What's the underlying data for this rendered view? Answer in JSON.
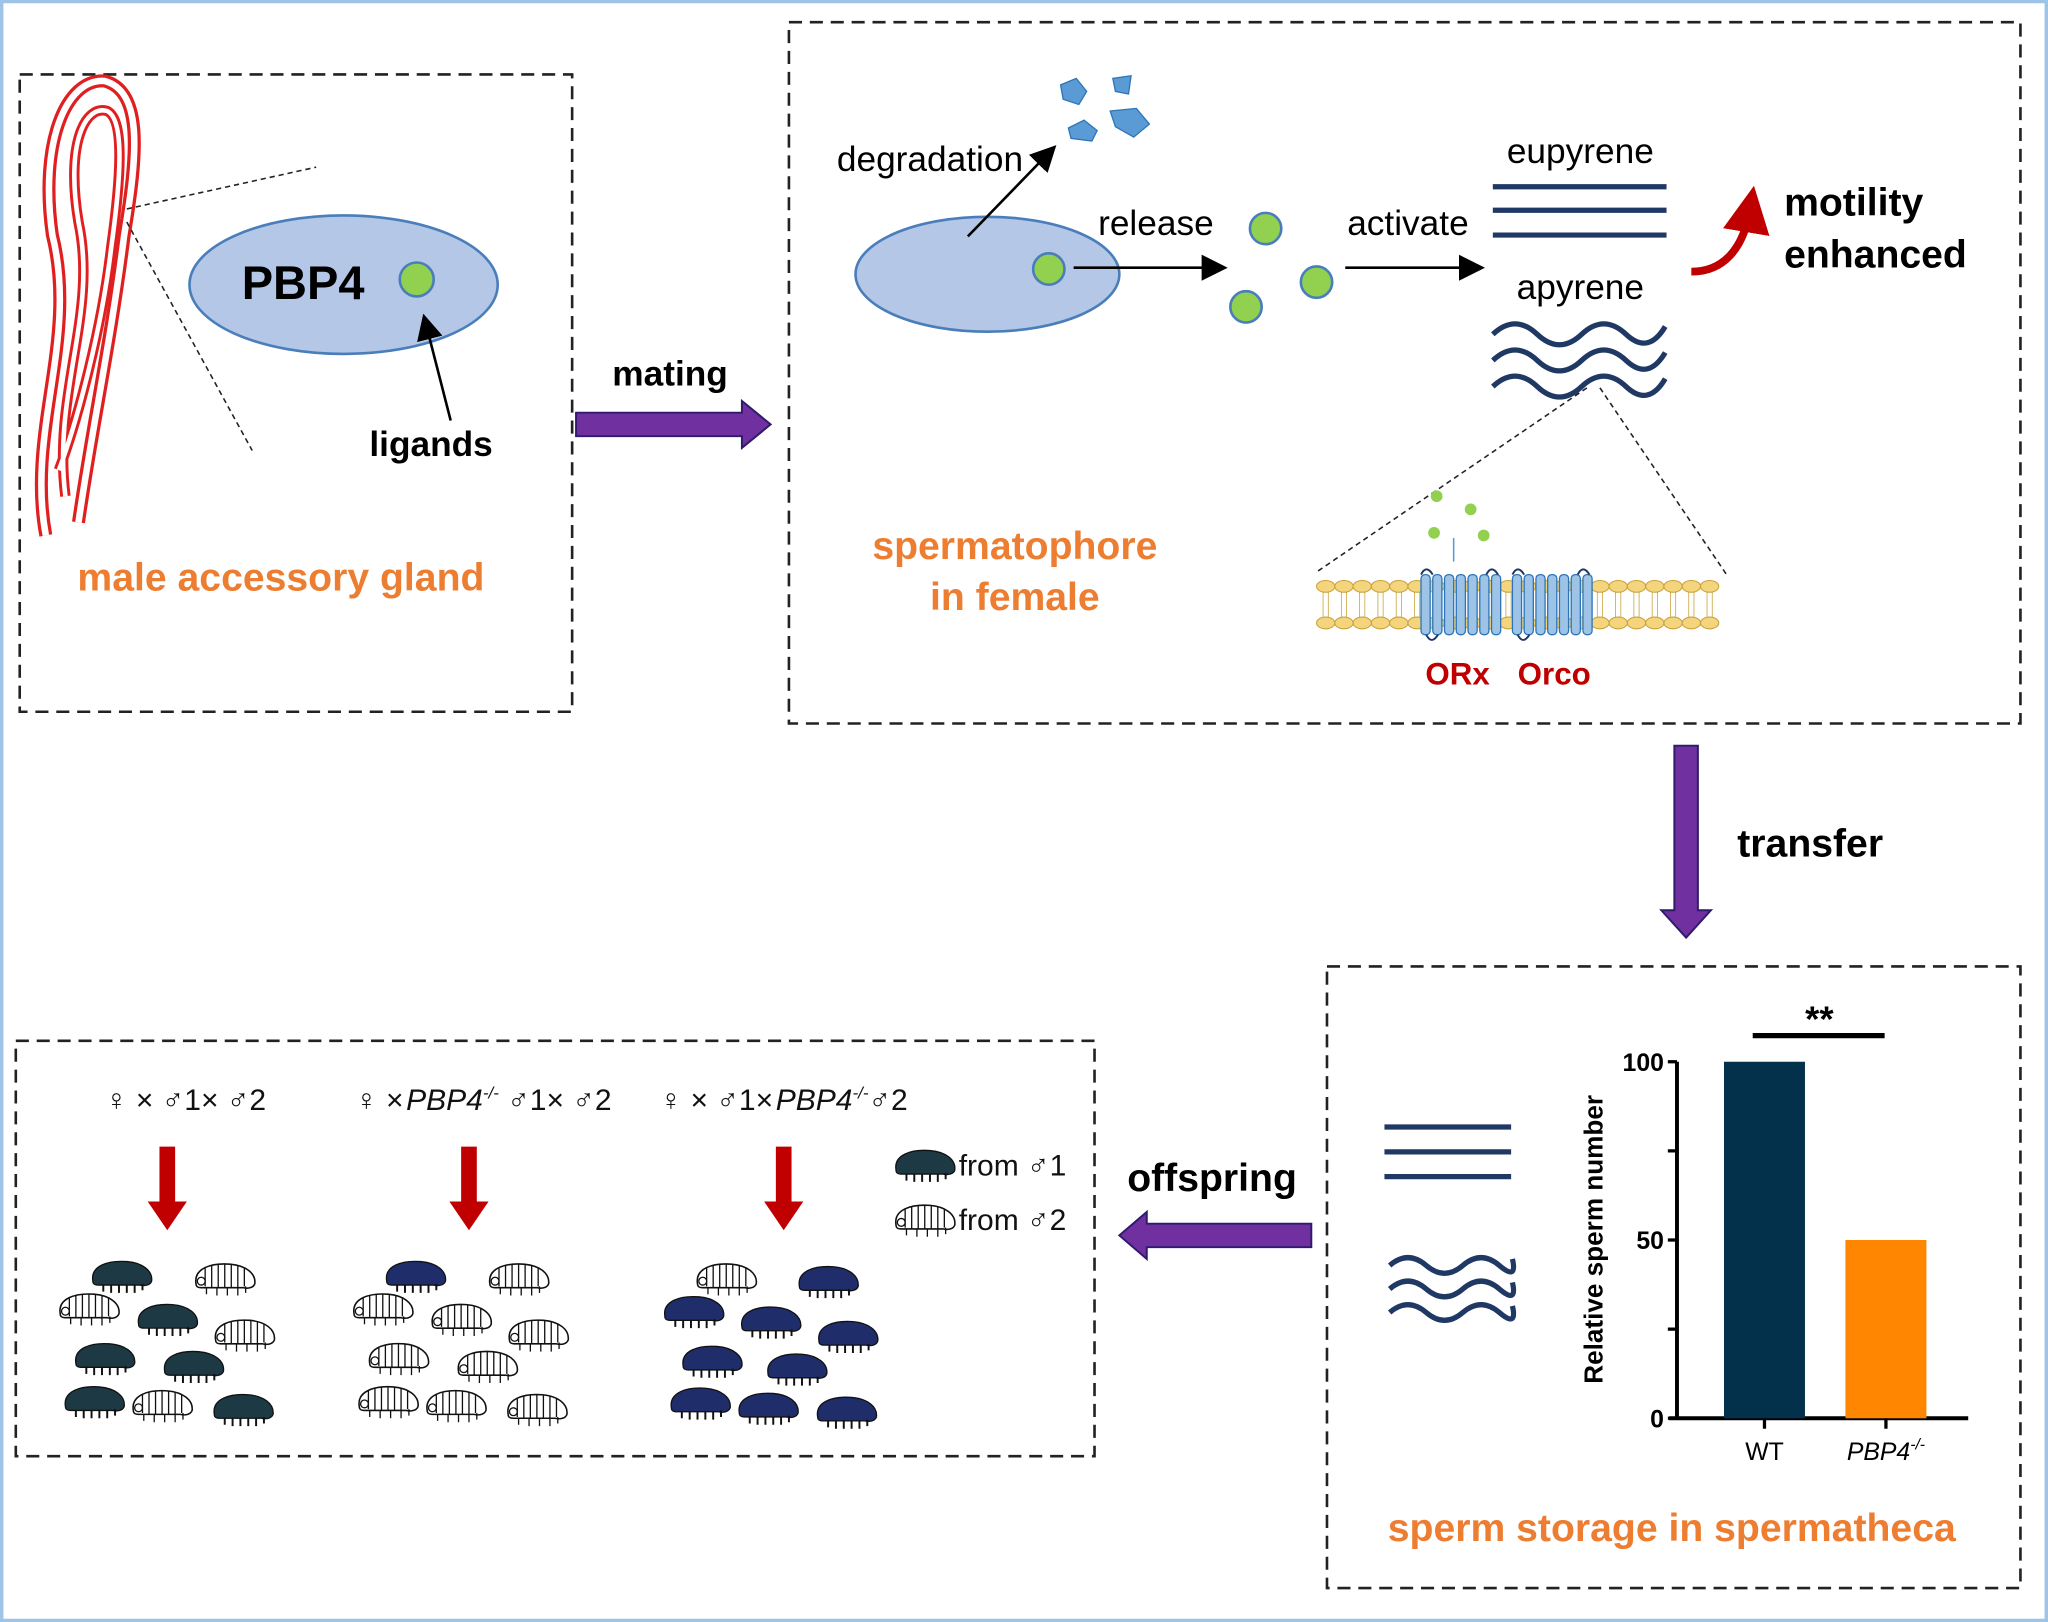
{
  "colors": {
    "accent_orange": "#ed7d31",
    "arrow_purple": "#7030a0",
    "arrow_red": "#c00000",
    "ligand_green": "#92d050",
    "protein_blue": "#b4c7e7",
    "sperm_navy": "#1f3864",
    "bar_wt": "#03304a",
    "bar_mutant": "#ff8600",
    "frame": "#9dc3e6"
  },
  "panel_gland": {
    "protein_label": "PBP4",
    "ligand_label": "ligands",
    "title": "male accessory gland"
  },
  "mating_label": "mating",
  "panel_female": {
    "degradation": "degradation",
    "release": "release",
    "activate": "activate",
    "eupyrene": "eupyrene",
    "apyrene": "apyrene",
    "motility_line1": "motility",
    "motility_line2": "enhanced",
    "receptor_1": "ORx",
    "receptor_2": "Orco",
    "title_line1": "spermatophore",
    "title_line2": "in female"
  },
  "transfer_label": "transfer",
  "offspring_label": "offspring",
  "panel_storage": {
    "title": "sperm storage in spermatheca"
  },
  "chart_data": {
    "type": "bar",
    "categories": [
      "WT",
      "PBP4"
    ],
    "category_superscripts": [
      "",
      "-/-"
    ],
    "values": [
      100,
      50
    ],
    "ylabel": "Relative sperm number",
    "ylim": [
      0,
      100
    ],
    "yticks": [
      "0",
      "50",
      "100"
    ],
    "significance": "**",
    "colors": [
      "#03304a",
      "#ff8600"
    ]
  },
  "panel_offspring": {
    "crosses": [
      {
        "pre": "♀ × ♂1× ♂2",
        "gene": "",
        "sup": "",
        "post": ""
      },
      {
        "pre": "♀ ×",
        "gene": "PBP4",
        "sup": "-/-",
        "post": " ♂1× ♂2"
      },
      {
        "pre": "♀ × ♂1×",
        "gene": "PBP4",
        "sup": "-/-",
        "post": "♂2"
      }
    ],
    "legend": [
      {
        "label": "from ♂1",
        "type": "dark"
      },
      {
        "label": "from ♂2",
        "type": "light"
      }
    ],
    "groups": [
      [
        "dark",
        "light",
        "light",
        "dark",
        "light",
        "dark",
        "dark",
        "dark",
        "light",
        "dark"
      ],
      [
        "dark",
        "light",
        "light",
        "light",
        "light",
        "light",
        "light",
        "light",
        "light",
        "light"
      ],
      [
        "light",
        "dark",
        "dark",
        "dark",
        "dark",
        "dark",
        "dark",
        "dark",
        "dark",
        "dark"
      ]
    ]
  }
}
